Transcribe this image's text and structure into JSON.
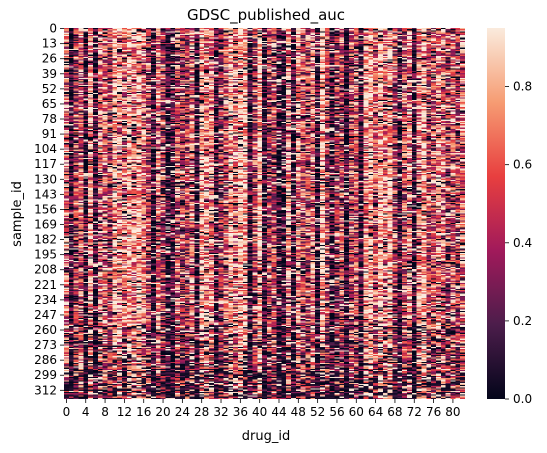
{
  "chart_data": {
    "type": "heatmap",
    "title": "GDSC_published_auc",
    "xlabel": "drug_id",
    "ylabel": "sample_id",
    "x_tick_labels": [
      "0",
      "4",
      "8",
      "12",
      "16",
      "20",
      "24",
      "28",
      "32",
      "36",
      "40",
      "44",
      "48",
      "52",
      "56",
      "60",
      "64",
      "68",
      "72",
      "76",
      "80"
    ],
    "y_tick_labels": [
      "0",
      "13",
      "26",
      "39",
      "52",
      "65",
      "78",
      "91",
      "104",
      "117",
      "130",
      "143",
      "156",
      "169",
      "182",
      "195",
      "208",
      "221",
      "234",
      "247",
      "260",
      "273",
      "286",
      "299",
      "312"
    ],
    "n_cols": 83,
    "n_rows": 320,
    "value_range": [
      0.0,
      0.95
    ],
    "colorbar": {
      "ticks": [
        "0.0",
        "0.2",
        "0.4",
        "0.6",
        "0.8"
      ],
      "tick_values": [
        0.0,
        0.2,
        0.4,
        0.6,
        0.8
      ],
      "colormap": "rocket",
      "stops": [
        "#03051a",
        "#4c1d4b",
        "#a11a5b",
        "#e83f3f",
        "#f69c73",
        "#faebdd"
      ]
    },
    "column_profile": {
      "dark_columns": [
        1,
        4,
        6,
        18,
        21,
        22,
        27,
        31,
        38,
        41,
        44,
        45,
        47,
        52,
        55,
        58,
        61,
        69,
        72
      ],
      "light_columns": [
        10,
        13,
        15,
        28,
        34,
        36,
        37,
        40,
        53,
        63,
        65,
        67,
        74
      ]
    }
  }
}
